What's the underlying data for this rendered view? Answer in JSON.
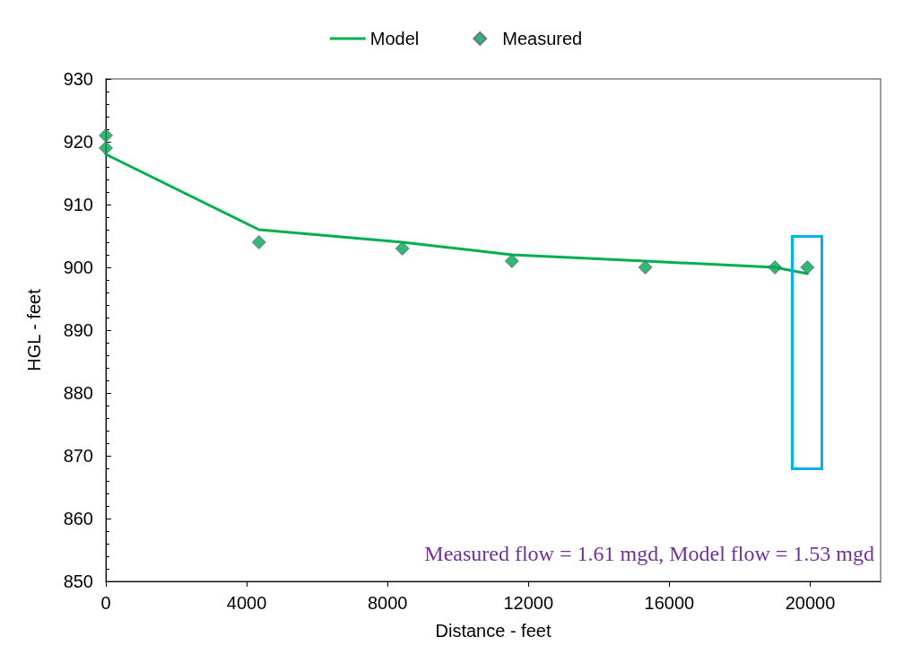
{
  "chart_data": {
    "type": "line",
    "xlabel": "Distance - feet",
    "ylabel": "HGL - feet",
    "xlim": [
      0,
      22000
    ],
    "xticks": [
      0,
      4000,
      8000,
      12000,
      16000,
      20000
    ],
    "ylim": [
      850,
      930
    ],
    "yticks": [
      850,
      860,
      870,
      880,
      890,
      900,
      910,
      920,
      930
    ],
    "grid": false,
    "legend": "top",
    "annotations": [
      "Measured flow = 1.61 mgd, Model flow = 1.53 mgd"
    ],
    "series": [
      {
        "name": "Model",
        "color": "#00b050",
        "marker": "none",
        "x": [
          0,
          4350,
          8420,
          11530,
          15320,
          19000,
          19920
        ],
        "values": [
          918,
          906,
          904,
          902,
          901,
          900,
          899
        ]
      },
      {
        "name": "Measured",
        "type": "scatter",
        "color": "#00a651",
        "marker": "diamond",
        "x": [
          0,
          0,
          4350,
          8420,
          11530,
          15320,
          19000,
          19920
        ],
        "values": [
          921,
          919,
          904,
          903,
          901,
          900,
          900,
          900
        ]
      }
    ]
  }
}
